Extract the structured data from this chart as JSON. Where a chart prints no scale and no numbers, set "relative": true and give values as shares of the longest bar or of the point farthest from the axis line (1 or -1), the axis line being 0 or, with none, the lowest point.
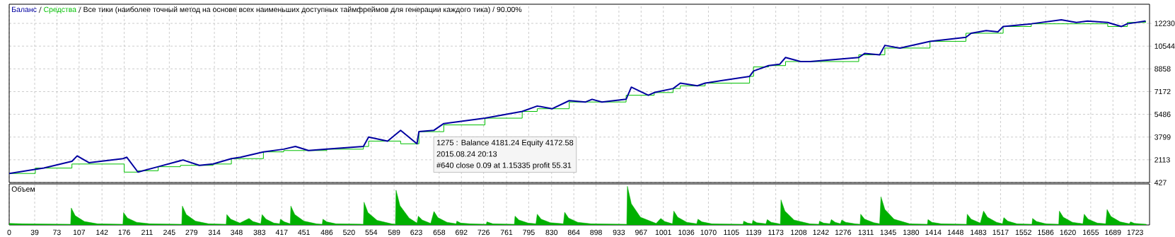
{
  "chart_data": [
    {
      "type": "line",
      "title": "Все тики (наиболее точный метод на основе всех наименьших доступных таймфреймов для генерации каждого тика) / 90.00%",
      "series": [
        {
          "name": "Баланс",
          "color": "#0000a0",
          "type": "line",
          "x": [
            0,
            39,
            53,
            96,
            104,
            122,
            174,
            180,
            197,
            228,
            266,
            291,
            312,
            340,
            354,
            389,
            420,
            438,
            458,
            486,
            542,
            550,
            579,
            599,
            624,
            627,
            650,
            665,
            728,
            785,
            808,
            831,
            857,
            882,
            892,
            907,
            944,
            952,
            978,
            987,
            1016,
            1027,
            1053,
            1065,
            1133,
            1139,
            1162,
            1179,
            1188,
            1211,
            1226,
            1300,
            1309,
            1332,
            1340,
            1363,
            1409,
            1464,
            1472,
            1495,
            1513,
            1521,
            1564,
            1610,
            1633,
            1650,
            1681,
            1702,
            1711,
            1739
          ],
          "values": [
            1100,
            1400,
            1500,
            2000,
            2400,
            1900,
            2200,
            2300,
            1200,
            1600,
            2100,
            1700,
            1800,
            2200,
            2300,
            2700,
            2900,
            3100,
            2800,
            2900,
            3100,
            3800,
            3500,
            4300,
            3300,
            4200,
            4300,
            4800,
            5200,
            5700,
            6100,
            5900,
            6500,
            6400,
            6600,
            6400,
            6600,
            7500,
            6900,
            7100,
            7400,
            7800,
            7600,
            7800,
            8300,
            8700,
            9100,
            9200,
            9700,
            9400,
            9400,
            9700,
            10000,
            9900,
            10600,
            10400,
            10900,
            11200,
            11500,
            11700,
            11600,
            12000,
            12200,
            12500,
            12300,
            12400,
            12300,
            12000,
            12200,
            12400
          ]
        },
        {
          "name": "Средства",
          "color": "#00c000",
          "type": "step",
          "x": [
            0,
            40,
            96,
            176,
            197,
            228,
            262,
            312,
            340,
            389,
            420,
            486,
            542,
            550,
            599,
            627,
            665,
            728,
            785,
            808,
            857,
            944,
            987,
            1016,
            1027,
            1065,
            1133,
            1139,
            1162,
            1188,
            1300,
            1309,
            1340,
            1409,
            1464,
            1521,
            1564,
            1681,
            1711,
            1739
          ],
          "values": [
            1100,
            1500,
            1800,
            1200,
            1300,
            1600,
            1700,
            1800,
            2200,
            2700,
            2800,
            2900,
            3100,
            3500,
            3300,
            4200,
            4700,
            5200,
            5700,
            5900,
            6400,
            6900,
            7100,
            7400,
            7600,
            7800,
            8300,
            9000,
            9100,
            9400,
            9900,
            9900,
            10400,
            10900,
            11500,
            12000,
            12200,
            12000,
            12300,
            12400
          ]
        }
      ],
      "xlim": [
        0,
        1745
      ],
      "ylim": [
        427,
        13650
      ],
      "xticks": [
        0,
        39,
        73,
        107,
        142,
        176,
        211,
        245,
        279,
        314,
        348,
        383,
        417,
        451,
        486,
        520,
        554,
        589,
        623,
        658,
        692,
        726,
        761,
        795,
        830,
        864,
        898,
        933,
        967,
        1001,
        1036,
        1070,
        1105,
        1139,
        1173,
        1208,
        1242,
        1276,
        1311,
        1345,
        1380,
        1414,
        1448,
        1483,
        1517,
        1552,
        1586,
        1620,
        1655,
        1689,
        1723
      ],
      "yticks": [
        427,
        2113,
        3799,
        5486,
        7172,
        8858,
        10544,
        12230
      ],
      "grid": true,
      "legend": "top left",
      "tick_labels": "y",
      "annotations": [
        "1275 : Balance 4181.24 Equity 4172.58",
        "2015.08.24 20:13",
        "#640 close 0.09 at 1.15335 profit 55.31"
      ]
    },
    {
      "type": "area",
      "title": "Объем",
      "relative": true,
      "color": "#00b000",
      "x": [
        0,
        20,
        94,
        95,
        101,
        115,
        135,
        174,
        175,
        181,
        195,
        215,
        264,
        265,
        271,
        285,
        305,
        332,
        333,
        339,
        353,
        367,
        373,
        385,
        387,
        393,
        405,
        414,
        415,
        421,
        430,
        431,
        437,
        451,
        470,
        479,
        480,
        486,
        500,
        542,
        543,
        549,
        563,
        585,
        591,
        592,
        598,
        612,
        624,
        626,
        632,
        645,
        650,
        656,
        670,
        684,
        685,
        691,
        705,
        730,
        731,
        740,
        773,
        774,
        780,
        794,
        806,
        808,
        814,
        828,
        848,
        850,
        856,
        870,
        890,
        945,
        946,
        952,
        966,
        990,
        997,
        1003,
        1015,
        1017,
        1023,
        1037,
        1052,
        1054,
        1060,
        1075,
        1123,
        1124,
        1130,
        1137,
        1138,
        1144,
        1158,
        1160,
        1166,
        1178,
        1180,
        1181,
        1187,
        1201,
        1225,
        1239,
        1240,
        1246,
        1256,
        1258,
        1264,
        1272,
        1274,
        1280,
        1294,
        1302,
        1303,
        1309,
        1323,
        1332,
        1334,
        1340,
        1354,
        1378,
        1405,
        1406,
        1412,
        1426,
        1465,
        1466,
        1472,
        1486,
        1491,
        1497,
        1511,
        1520,
        1522,
        1528,
        1542,
        1565,
        1566,
        1572,
        1586,
        1606,
        1607,
        1613,
        1627,
        1643,
        1645,
        1651,
        1665,
        1678,
        1680,
        1686,
        1700,
        1714,
        1716,
        1722,
        1740
      ],
      "values": [
        0.04,
        0.03,
        0.02,
        0.44,
        0.24,
        0.09,
        0.03,
        0.02,
        0.32,
        0.18,
        0.07,
        0.03,
        0.02,
        0.49,
        0.27,
        0.1,
        0.03,
        0.02,
        0.27,
        0.15,
        0.05,
        0.17,
        0.09,
        0.03,
        0.27,
        0.15,
        0.05,
        0.03,
        0.15,
        0.08,
        0.03,
        0.49,
        0.27,
        0.1,
        0.03,
        0.02,
        0.15,
        0.08,
        0.03,
        0.02,
        0.59,
        0.32,
        0.12,
        0.03,
        0.02,
        0.9,
        0.5,
        0.18,
        0.05,
        0.23,
        0.13,
        0.04,
        0.35,
        0.19,
        0.07,
        0.03,
        0.1,
        0.05,
        0.03,
        0.02,
        0.08,
        0.03,
        0.02,
        0.23,
        0.13,
        0.05,
        0.03,
        0.28,
        0.15,
        0.06,
        0.03,
        0.33,
        0.18,
        0.07,
        0.03,
        0.02,
        1,
        0.55,
        0.2,
        0.04,
        0.17,
        0.09,
        0.03,
        0.36,
        0.2,
        0.07,
        0.03,
        0.15,
        0.08,
        0.03,
        0.02,
        0.1,
        0.05,
        0.03,
        0.12,
        0.06,
        0.03,
        0.14,
        0.07,
        0.03,
        0.02,
        0.65,
        0.36,
        0.13,
        0.03,
        0.02,
        0.1,
        0.05,
        0.03,
        0.14,
        0.07,
        0.03,
        0.13,
        0.07,
        0.03,
        0.02,
        0.28,
        0.15,
        0.06,
        0.03,
        0.73,
        0.4,
        0.15,
        0.03,
        0.02,
        0.14,
        0.07,
        0.03,
        0.02,
        0.28,
        0.15,
        0.05,
        0.36,
        0.2,
        0.07,
        0.03,
        0.19,
        0.1,
        0.03,
        0.02,
        0.17,
        0.09,
        0.03,
        0.02,
        0.36,
        0.2,
        0.07,
        0.03,
        0.28,
        0.15,
        0.05,
        0.03,
        0.4,
        0.22,
        0.08,
        0.03,
        0.08,
        0.04,
        0.02
      ],
      "xlim": [
        0,
        1745
      ],
      "xticks": [
        0,
        39,
        73,
        107,
        142,
        176,
        211,
        245,
        279,
        314,
        348,
        383,
        417,
        451,
        486,
        520,
        554,
        589,
        623,
        658,
        692,
        726,
        761,
        795,
        830,
        864,
        898,
        933,
        967,
        1001,
        1036,
        1070,
        1105,
        1139,
        1173,
        1208,
        1242,
        1276,
        1311,
        1345,
        1380,
        1414,
        1448,
        1483,
        1517,
        1552,
        1586,
        1620,
        1655,
        1689,
        1723
      ],
      "grid": "x",
      "tick_labels": "x"
    }
  ]
}
